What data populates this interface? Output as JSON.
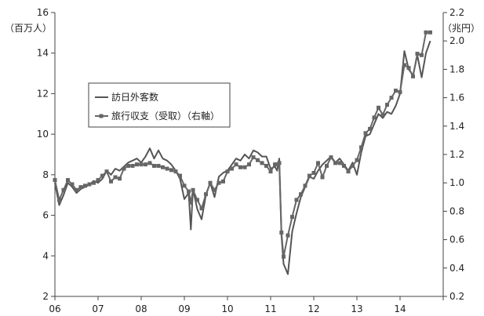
{
  "chart_data": {
    "type": "line",
    "ylabel_left": "（百万人）",
    "ylabel_right": "（兆円）",
    "x_ticks": [
      "06",
      "07",
      "08",
      "09",
      "10",
      "11",
      "12",
      "13",
      "14"
    ],
    "x_range": [
      2006.0,
      2015.0
    ],
    "y_left_range": [
      2,
      16
    ],
    "y_left_ticks": [
      2,
      4,
      6,
      8,
      10,
      12,
      14,
      16
    ],
    "y_right_range": [
      0.2,
      2.2
    ],
    "y_right_ticks": [
      "0.2",
      "0.4",
      "0.6",
      "0.8",
      "1.0",
      "1.2",
      "1.4",
      "1.6",
      "1.8",
      "2.0",
      "2.2"
    ],
    "legend_position": "upper-left",
    "series": [
      {
        "name": "訪日外客数",
        "axis": "left",
        "color": "#555555",
        "marker": "none",
        "x": [
          2006.0,
          2006.1,
          2006.2,
          2006.3,
          2006.4,
          2006.5,
          2006.6,
          2006.7,
          2006.8,
          2006.9,
          2007.0,
          2007.1,
          2007.2,
          2007.3,
          2007.4,
          2007.5,
          2007.6,
          2007.7,
          2007.8,
          2007.9,
          2008.0,
          2008.1,
          2008.2,
          2008.3,
          2008.4,
          2008.5,
          2008.6,
          2008.7,
          2008.8,
          2008.9,
          2009.0,
          2009.1,
          2009.15,
          2009.2,
          2009.3,
          2009.4,
          2009.5,
          2009.6,
          2009.7,
          2009.8,
          2009.9,
          2010.0,
          2010.1,
          2010.2,
          2010.3,
          2010.4,
          2010.5,
          2010.6,
          2010.7,
          2010.8,
          2010.9,
          2011.0,
          2011.1,
          2011.15,
          2011.2,
          2011.25,
          2011.3,
          2011.4,
          2011.5,
          2011.6,
          2011.7,
          2011.8,
          2011.9,
          2012.0,
          2012.1,
          2012.2,
          2012.3,
          2012.4,
          2012.5,
          2012.6,
          2012.7,
          2012.8,
          2012.9,
          2013.0,
          2013.1,
          2013.2,
          2013.3,
          2013.4,
          2013.5,
          2013.6,
          2013.7,
          2013.8,
          2013.9,
          2014.0,
          2014.1,
          2014.2,
          2014.3,
          2014.4,
          2014.5,
          2014.6,
          2014.7
        ],
        "y": [
          7.6,
          6.5,
          7.0,
          7.6,
          7.4,
          7.1,
          7.3,
          7.4,
          7.5,
          7.7,
          7.6,
          7.8,
          8.2,
          8.0,
          8.3,
          8.2,
          8.4,
          8.6,
          8.7,
          8.8,
          8.6,
          8.9,
          9.3,
          8.8,
          9.2,
          8.8,
          8.7,
          8.5,
          8.2,
          7.8,
          6.8,
          7.1,
          5.3,
          7.3,
          6.3,
          5.8,
          7.0,
          7.6,
          6.9,
          7.9,
          8.1,
          8.2,
          8.5,
          8.8,
          8.7,
          9.0,
          8.8,
          9.2,
          9.1,
          8.9,
          8.9,
          8.3,
          8.4,
          8.2,
          8.8,
          5.0,
          3.6,
          3.1,
          5.2,
          6.1,
          6.9,
          7.4,
          7.9,
          7.8,
          8.2,
          8.5,
          8.7,
          8.9,
          8.6,
          8.8,
          8.5,
          8.2,
          8.6,
          8.0,
          9.1,
          9.9,
          10.0,
          10.5,
          11.0,
          10.8,
          11.1,
          11.0,
          11.4,
          12.0,
          14.1,
          13.2,
          12.9,
          13.9,
          12.8,
          14.0,
          14.6
        ]
      },
      {
        "name": "旅行収支（受取）（右軸）",
        "axis": "right",
        "color": "#666666",
        "marker": "square",
        "x": [
          2006.0,
          2006.1,
          2006.2,
          2006.3,
          2006.4,
          2006.5,
          2006.6,
          2006.7,
          2006.8,
          2006.9,
          2007.0,
          2007.1,
          2007.2,
          2007.3,
          2007.4,
          2007.5,
          2007.6,
          2007.7,
          2007.8,
          2007.9,
          2008.0,
          2008.1,
          2008.2,
          2008.3,
          2008.4,
          2008.5,
          2008.6,
          2008.7,
          2008.8,
          2008.9,
          2009.0,
          2009.1,
          2009.15,
          2009.2,
          2009.3,
          2009.4,
          2009.5,
          2009.6,
          2009.7,
          2009.8,
          2009.9,
          2010.0,
          2010.1,
          2010.2,
          2010.3,
          2010.4,
          2010.5,
          2010.6,
          2010.7,
          2010.8,
          2010.9,
          2011.0,
          2011.1,
          2011.15,
          2011.2,
          2011.25,
          2011.3,
          2011.4,
          2011.5,
          2011.6,
          2011.7,
          2011.8,
          2011.9,
          2012.0,
          2012.1,
          2012.2,
          2012.3,
          2012.4,
          2012.5,
          2012.6,
          2012.7,
          2012.8,
          2012.9,
          2013.0,
          2013.1,
          2013.2,
          2013.3,
          2013.4,
          2013.5,
          2013.6,
          2013.7,
          2013.8,
          2013.9,
          2014.0,
          2014.1,
          2014.2,
          2014.3,
          2014.4,
          2014.5,
          2014.6,
          2014.7
        ],
        "y": [
          1.02,
          0.88,
          0.95,
          1.02,
          0.99,
          0.95,
          0.97,
          0.98,
          0.99,
          1.0,
          1.02,
          1.05,
          1.08,
          1.01,
          1.04,
          1.03,
          1.1,
          1.12,
          1.12,
          1.13,
          1.13,
          1.13,
          1.14,
          1.12,
          1.12,
          1.11,
          1.1,
          1.09,
          1.08,
          1.05,
          0.98,
          0.94,
          0.86,
          0.95,
          0.88,
          0.82,
          0.92,
          1.0,
          0.95,
          1.0,
          1.01,
          1.08,
          1.1,
          1.13,
          1.11,
          1.11,
          1.13,
          1.18,
          1.16,
          1.14,
          1.12,
          1.08,
          1.13,
          1.13,
          1.14,
          0.65,
          0.48,
          0.63,
          0.76,
          0.88,
          0.92,
          0.98,
          1.05,
          1.07,
          1.14,
          1.04,
          1.12,
          1.18,
          1.14,
          1.14,
          1.12,
          1.08,
          1.12,
          1.16,
          1.25,
          1.35,
          1.38,
          1.46,
          1.53,
          1.48,
          1.55,
          1.6,
          1.65,
          1.64,
          1.83,
          1.81,
          1.75,
          1.91,
          1.9,
          2.06,
          2.06
        ]
      }
    ]
  },
  "legend": {
    "items": [
      {
        "label": "訪日外客数",
        "marker": "none"
      },
      {
        "label": "旅行収支（受取）（右軸）",
        "marker": "square"
      }
    ]
  }
}
